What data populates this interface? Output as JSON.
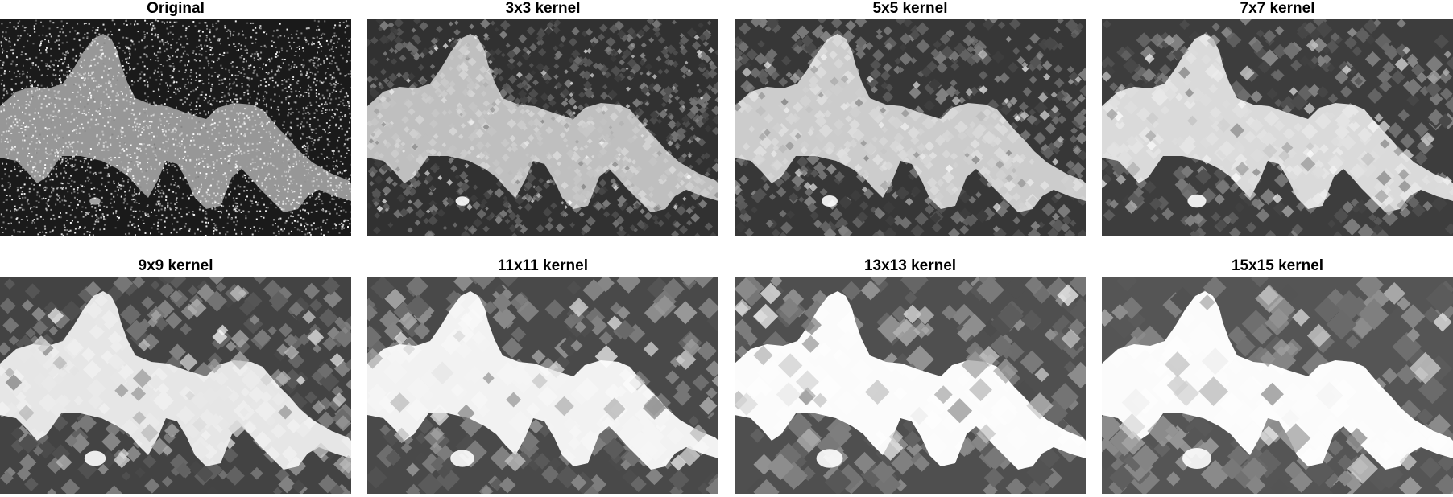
{
  "figure": {
    "panels": [
      {
        "title": "Original",
        "kernel_size": 1,
        "image": "noisy-grayscale-landform"
      },
      {
        "title": "3x3 kernel",
        "kernel_size": 3,
        "image": "filtered-grayscale-landform"
      },
      {
        "title": "5x5 kernel",
        "kernel_size": 5,
        "image": "filtered-grayscale-landform"
      },
      {
        "title": "7x7 kernel",
        "kernel_size": 7,
        "image": "filtered-grayscale-landform"
      },
      {
        "title": "9x9 kernel",
        "kernel_size": 9,
        "image": "filtered-grayscale-landform"
      },
      {
        "title": "11x11 kernel",
        "kernel_size": 11,
        "image": "filtered-grayscale-landform"
      },
      {
        "title": "13x13 kernel",
        "kernel_size": 13,
        "image": "filtered-grayscale-landform"
      },
      {
        "title": "15x15 kernel",
        "kernel_size": 15,
        "image": "filtered-grayscale-landform"
      }
    ],
    "colors": {
      "background": "#ffffff",
      "title_text": "#000000",
      "image_dark": "#1a1a1a",
      "image_bright": "#ffffff"
    }
  }
}
